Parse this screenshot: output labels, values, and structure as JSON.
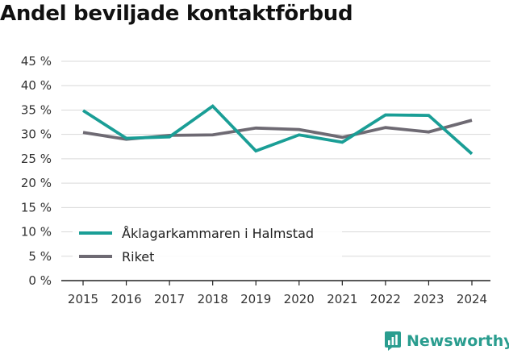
{
  "chart_data": {
    "type": "line",
    "title": "Andel beviljade kontaktförbud",
    "categories": [
      "2015",
      "2016",
      "2017",
      "2018",
      "2019",
      "2020",
      "2021",
      "2022",
      "2023",
      "2024"
    ],
    "ylim": [
      0,
      45
    ],
    "yticks": [
      0,
      5,
      10,
      15,
      20,
      25,
      30,
      35,
      40,
      45
    ],
    "ytick_labels": [
      "0 %",
      "5 %",
      "10 %",
      "15 %",
      "20 %",
      "25 %",
      "30 %",
      "35 %",
      "40 %",
      "45 %"
    ],
    "xlabel": "",
    "ylabel": "",
    "grid": true,
    "legend_position": "bottom-left",
    "series": [
      {
        "name": "Åklagarkammaren i Halmstad",
        "color": "#1a9e96",
        "values": [
          34.9,
          29.2,
          29.5,
          35.8,
          26.6,
          29.9,
          28.4,
          34.0,
          33.9,
          26.0
        ]
      },
      {
        "name": "Riket",
        "color": "#6e6a73",
        "values": [
          30.4,
          29.0,
          29.8,
          29.9,
          31.3,
          31.0,
          29.4,
          31.4,
          30.5,
          32.9
        ]
      }
    ]
  },
  "brand": {
    "name": "Newsworthy",
    "icon": "newsworthy-logo-icon",
    "color": "#2a9d8f"
  }
}
